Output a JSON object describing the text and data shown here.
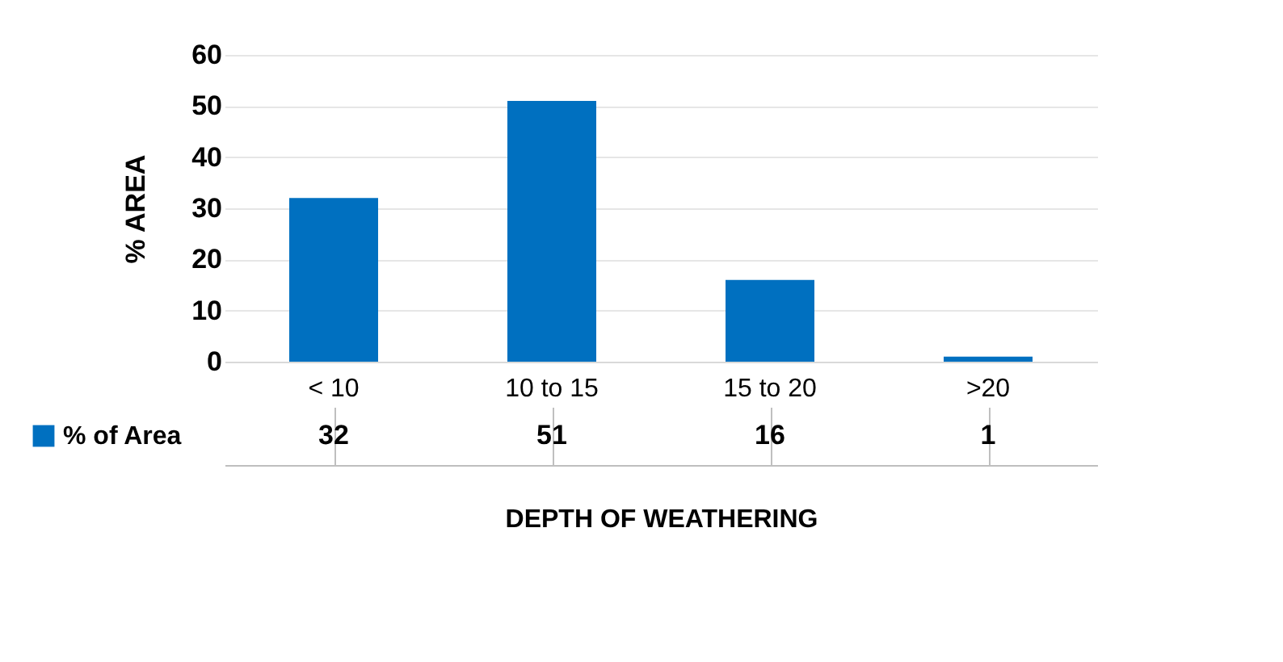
{
  "chart_data": {
    "type": "bar",
    "ylabel": "%  AREA",
    "xlabel": "DEPTH OF WEATHERING",
    "categories": [
      "< 10",
      "10 to 15",
      "15 to 20",
      ">20"
    ],
    "series": [
      {
        "name": "% of Area",
        "color": "#0070c0",
        "values": [
          32,
          51,
          16,
          1
        ]
      }
    ],
    "ylim": [
      0,
      60
    ],
    "yticks": [
      0,
      10,
      20,
      30,
      40,
      50,
      60
    ],
    "grid": "y",
    "data_labels": true,
    "legend": "bottom left"
  }
}
